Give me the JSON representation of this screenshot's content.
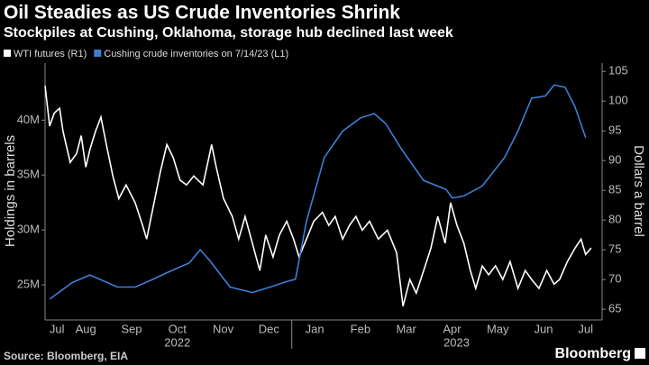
{
  "chart_data": {
    "type": "line",
    "title": "Oil Steadies as US Crude Inventories Shrink",
    "subtitle": "Stockpiles at Cushing, Oklahoma, storage hub declined last week",
    "y_label": "Holdings in barrels",
    "y2_label": "Dollars a barrel",
    "source": "Source: Bloomberg, EIA",
    "brand": "Bloomberg",
    "background": "#000000",
    "xlim": [
      0.61,
      12.78
    ],
    "xticks": [
      {
        "value": 0.87,
        "label": "Jul"
      },
      {
        "value": 1.5,
        "label": "Aug"
      },
      {
        "value": 2.5,
        "label": "Sep"
      },
      {
        "value": 3.5,
        "label": "Oct"
      },
      {
        "value": 4.5,
        "label": "Nov"
      },
      {
        "value": 5.5,
        "label": "Dec"
      },
      {
        "value": 6.5,
        "label": "Jan"
      },
      {
        "value": 7.5,
        "label": "Feb"
      },
      {
        "value": 8.5,
        "label": "Mar"
      },
      {
        "value": 9.5,
        "label": "Apr"
      },
      {
        "value": 10.5,
        "label": "May"
      },
      {
        "value": 11.5,
        "label": "Jun"
      },
      {
        "value": 12.42,
        "label": "Jul"
      }
    ],
    "x_group_labels": [
      {
        "value": 3.5,
        "label": "2022"
      },
      {
        "value": 9.6,
        "label": "2023"
      }
    ],
    "ylim": [
      21.8,
      45.2
    ],
    "yticks": [
      {
        "value": 25,
        "label": "25M"
      },
      {
        "value": 30,
        "label": "30M"
      },
      {
        "value": 35,
        "label": "35M"
      },
      {
        "value": 40,
        "label": "40M"
      }
    ],
    "y2lim": [
      63.2,
      106.4
    ],
    "y2ticks": [
      65,
      70,
      75,
      80,
      85,
      90,
      95,
      100,
      105
    ],
    "series": [
      {
        "name": "WTI futures (R1)",
        "color": "#ffffff",
        "axis": "y2",
        "x": [
          0.61,
          0.71,
          0.81,
          0.93,
          1.0,
          1.16,
          1.3,
          1.4,
          1.5,
          1.59,
          1.71,
          1.83,
          1.95,
          2.09,
          2.22,
          2.38,
          2.58,
          2.74,
          2.83,
          2.97,
          3.13,
          3.27,
          3.41,
          3.56,
          3.7,
          3.86,
          4.06,
          4.25,
          4.35,
          4.51,
          4.7,
          4.84,
          4.98,
          5.14,
          5.3,
          5.43,
          5.59,
          5.73,
          5.89,
          6.04,
          6.16,
          6.32,
          6.48,
          6.67,
          6.81,
          6.95,
          7.11,
          7.26,
          7.4,
          7.54,
          7.7,
          7.89,
          8.09,
          8.29,
          8.43,
          8.58,
          8.72,
          8.88,
          9.04,
          9.19,
          9.35,
          9.47,
          9.61,
          9.76,
          9.9,
          10.02,
          10.16,
          10.3,
          10.45,
          10.61,
          10.77,
          10.94,
          11.1,
          11.24,
          11.4,
          11.57,
          11.73,
          11.85,
          12.02,
          12.19,
          12.32,
          12.42,
          12.54
        ],
        "values": [
          102.6,
          95.8,
          98,
          98.8,
          95,
          89.7,
          91.2,
          94.2,
          88.9,
          91.9,
          94.9,
          97.3,
          92.7,
          87.4,
          83.6,
          85.9,
          82.9,
          79.1,
          76.8,
          82.1,
          88.2,
          92.7,
          90.5,
          86.7,
          85.9,
          87.4,
          85.9,
          92.7,
          88.9,
          83.6,
          80.6,
          76.8,
          80.6,
          76.1,
          71.5,
          77.5,
          73.8,
          77.5,
          79.8,
          76.8,
          73.8,
          76.8,
          79.8,
          81.3,
          79.1,
          80.6,
          76.8,
          79.1,
          80.6,
          78.3,
          79.8,
          76.8,
          78.3,
          74.5,
          65.5,
          70.0,
          67.7,
          71.5,
          75.3,
          80.6,
          76.1,
          82.9,
          79.1,
          76.1,
          71.5,
          68.5,
          72.3,
          70.8,
          72.3,
          70.0,
          73.0,
          68.5,
          71.5,
          70.0,
          68.5,
          71.5,
          69.2,
          70.0,
          73.0,
          75.3,
          76.8,
          74.2,
          75.3
        ]
      },
      {
        "name": "Cushing crude inventories on 7/14/23 (L1)",
        "color": "#3d7fd6",
        "x": [
          0.71,
          1.2,
          1.59,
          2.19,
          2.58,
          2.97,
          3.27,
          3.76,
          4.0,
          4.19,
          4.65,
          5.14,
          5.53,
          5.89,
          6.08,
          6.32,
          6.71,
          7.11,
          7.5,
          7.8,
          8.05,
          8.39,
          8.88,
          9.37,
          9.51,
          9.76,
          10.16,
          10.65,
          10.94,
          11.24,
          11.54,
          11.73,
          11.97,
          12.19,
          12.42
        ],
        "values": [
          23.7,
          25.2,
          25.9,
          24.8,
          24.8,
          25.5,
          26.1,
          27.0,
          28.2,
          27.3,
          24.8,
          24.3,
          24.8,
          25.3,
          25.5,
          30.8,
          36.6,
          39.0,
          40.2,
          40.6,
          39.7,
          37.4,
          34.5,
          33.7,
          32.9,
          33.1,
          34.0,
          36.6,
          39.0,
          42.0,
          42.2,
          43.2,
          43.0,
          41.2,
          38.4
        ]
      }
    ]
  }
}
